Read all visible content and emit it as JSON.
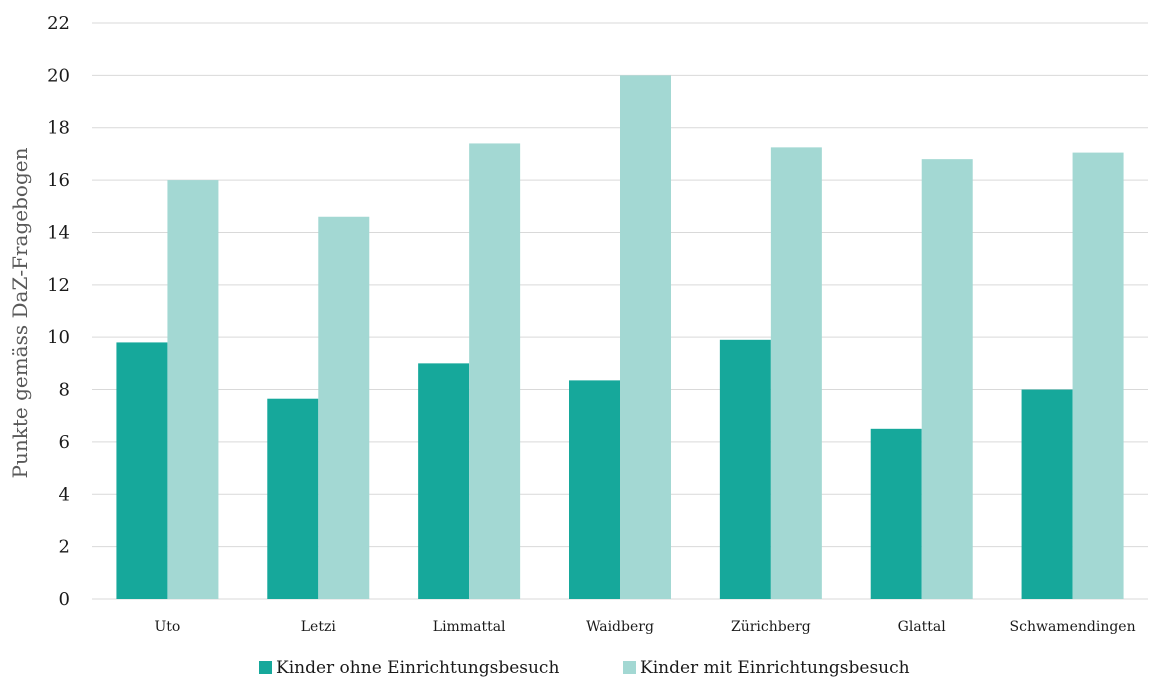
{
  "chart_data": {
    "type": "bar",
    "title": "",
    "xlabel": "",
    "ylabel": "Punkte gemäss DaZ-Fragebogen",
    "ylim": [
      0,
      22
    ],
    "yticks": [
      0,
      2,
      4,
      6,
      8,
      10,
      12,
      14,
      16,
      18,
      20,
      22
    ],
    "grid": true,
    "legend_position": "bottom",
    "categories": [
      "Uto",
      "Letzi",
      "Limmattal",
      "Waidberg",
      "Zürichberg",
      "Glattal",
      "Schwamendingen"
    ],
    "series": [
      {
        "name": "Kinder ohne Einrichtungsbesuch",
        "color": "#16a89b",
        "values": [
          9.8,
          7.65,
          9.0,
          8.35,
          9.9,
          6.5,
          8.0
        ]
      },
      {
        "name": "Kinder mit Einrichtungsbesuch",
        "color": "#a3d8d3",
        "values": [
          16.0,
          14.6,
          17.4,
          20.0,
          17.25,
          16.8,
          17.05
        ]
      }
    ]
  }
}
